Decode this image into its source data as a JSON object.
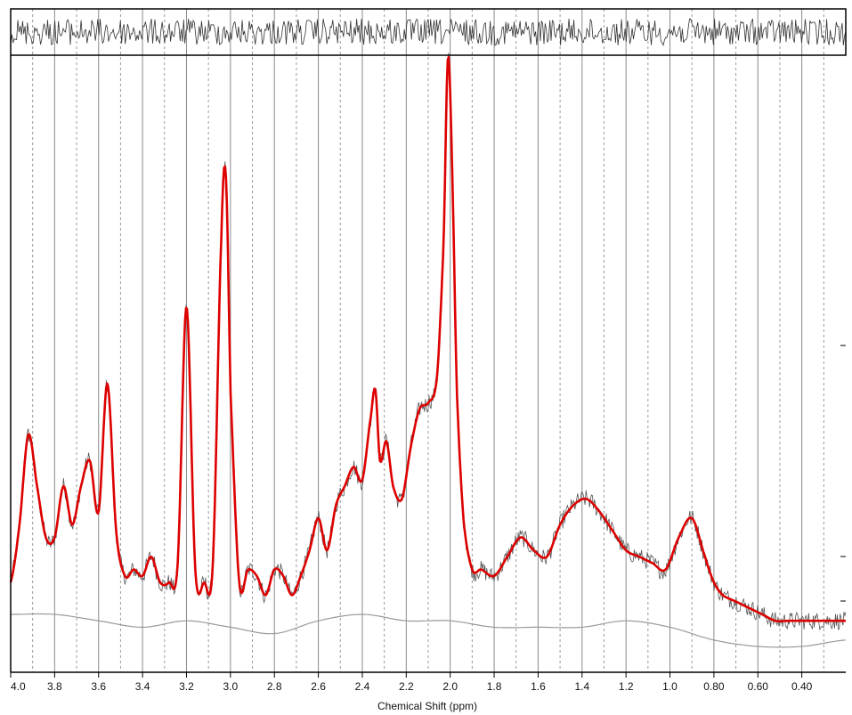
{
  "chart_data": {
    "type": "line",
    "title": "",
    "xlabel": "Chemical Shift (ppm)",
    "ylabel": "",
    "xlim": [
      4.0,
      0.2
    ],
    "x_reversed": true,
    "ylim": [
      0,
      1
    ],
    "grid": true,
    "grid_solid_ticks": [
      3.8,
      3.6,
      3.4,
      3.2,
      3.0,
      2.8,
      2.6,
      2.4,
      2.2,
      2.0,
      1.8,
      1.6,
      1.4,
      1.2,
      1.0,
      0.8,
      0.6,
      0.4
    ],
    "grid_dashed_ticks": [
      3.9,
      3.7,
      3.5,
      3.3,
      3.1,
      2.9,
      2.7,
      2.5,
      2.3,
      2.1,
      1.9,
      1.7,
      1.5,
      1.3,
      1.1,
      0.9,
      0.7,
      0.5,
      0.3
    ],
    "x_ticks": [
      {
        "value": 4.0,
        "label": "4.0"
      },
      {
        "value": 3.8,
        "label": "3.8"
      },
      {
        "value": 3.6,
        "label": "3.6"
      },
      {
        "value": 3.4,
        "label": "3.4"
      },
      {
        "value": 3.2,
        "label": "3.2"
      },
      {
        "value": 3.0,
        "label": "3.0"
      },
      {
        "value": 2.8,
        "label": "2.8"
      },
      {
        "value": 2.6,
        "label": "2.6"
      },
      {
        "value": 2.4,
        "label": "2.4"
      },
      {
        "value": 2.2,
        "label": "2.2"
      },
      {
        "value": 2.0,
        "label": "2.0"
      },
      {
        "value": 1.8,
        "label": "1.8"
      },
      {
        "value": 1.6,
        "label": "1.6"
      },
      {
        "value": 1.4,
        "label": "1.4"
      },
      {
        "value": 1.2,
        "label": "1.2"
      },
      {
        "value": 1.0,
        "label": "1.0"
      },
      {
        "value": 0.8,
        "label": "0.80"
      },
      {
        "value": 0.6,
        "label": "0.60"
      },
      {
        "value": 0.4,
        "label": "0.40"
      }
    ],
    "series": [
      {
        "role": "fit",
        "color": "#dd0000",
        "x": [
          4.0,
          3.96,
          3.92,
          3.88,
          3.84,
          3.8,
          3.76,
          3.72,
          3.68,
          3.64,
          3.6,
          3.56,
          3.52,
          3.48,
          3.44,
          3.4,
          3.36,
          3.32,
          3.28,
          3.24,
          3.2,
          3.16,
          3.12,
          3.08,
          3.04,
          3.02,
          3.0,
          2.96,
          2.92,
          2.88,
          2.84,
          2.8,
          2.76,
          2.72,
          2.68,
          2.64,
          2.6,
          2.56,
          2.52,
          2.48,
          2.44,
          2.4,
          2.36,
          2.34,
          2.32,
          2.29,
          2.26,
          2.22,
          2.18,
          2.14,
          2.1,
          2.06,
          2.03,
          2.01,
          1.99,
          1.97,
          1.94,
          1.9,
          1.86,
          1.8,
          1.74,
          1.68,
          1.62,
          1.56,
          1.5,
          1.44,
          1.38,
          1.32,
          1.26,
          1.2,
          1.14,
          1.08,
          1.02,
          0.96,
          0.9,
          0.84,
          0.8,
          0.76,
          0.7,
          0.64,
          0.58,
          0.52,
          0.46,
          0.4,
          0.34,
          0.28,
          0.22
        ],
        "y": [
          0.05,
          0.14,
          0.28,
          0.2,
          0.12,
          0.12,
          0.2,
          0.14,
          0.2,
          0.24,
          0.16,
          0.36,
          0.13,
          0.06,
          0.07,
          0.06,
          0.09,
          0.05,
          0.05,
          0.08,
          0.48,
          0.07,
          0.05,
          0.08,
          0.6,
          0.68,
          0.35,
          0.05,
          0.07,
          0.06,
          0.03,
          0.07,
          0.06,
          0.03,
          0.06,
          0.1,
          0.15,
          0.1,
          0.17,
          0.2,
          0.23,
          0.21,
          0.31,
          0.35,
          0.24,
          0.27,
          0.2,
          0.18,
          0.26,
          0.32,
          0.33,
          0.37,
          0.58,
          0.87,
          0.68,
          0.35,
          0.15,
          0.07,
          0.07,
          0.06,
          0.09,
          0.12,
          0.1,
          0.09,
          0.14,
          0.17,
          0.18,
          0.16,
          0.13,
          0.1,
          0.09,
          0.08,
          0.07,
          0.12,
          0.15,
          0.09,
          0.05,
          0.03,
          0.02,
          0.01,
          0.0,
          -0.01,
          -0.01,
          -0.01,
          -0.01,
          -0.01,
          -0.01
        ]
      },
      {
        "role": "measured",
        "color": "#555555"
      },
      {
        "role": "baseline",
        "color": "#999999",
        "x": [
          4.0,
          3.8,
          3.6,
          3.4,
          3.2,
          3.0,
          2.8,
          2.6,
          2.4,
          2.2,
          2.0,
          1.8,
          1.6,
          1.4,
          1.2,
          1.0,
          0.8,
          0.6,
          0.4,
          0.2
        ],
        "y": [
          0.0,
          0.0,
          -0.01,
          -0.02,
          -0.01,
          -0.02,
          -0.03,
          -0.01,
          0.0,
          -0.01,
          -0.01,
          -0.02,
          -0.02,
          -0.02,
          -0.01,
          -0.02,
          -0.04,
          -0.05,
          -0.05,
          -0.04
        ]
      },
      {
        "role": "residual",
        "color": "#333333"
      }
    ]
  }
}
